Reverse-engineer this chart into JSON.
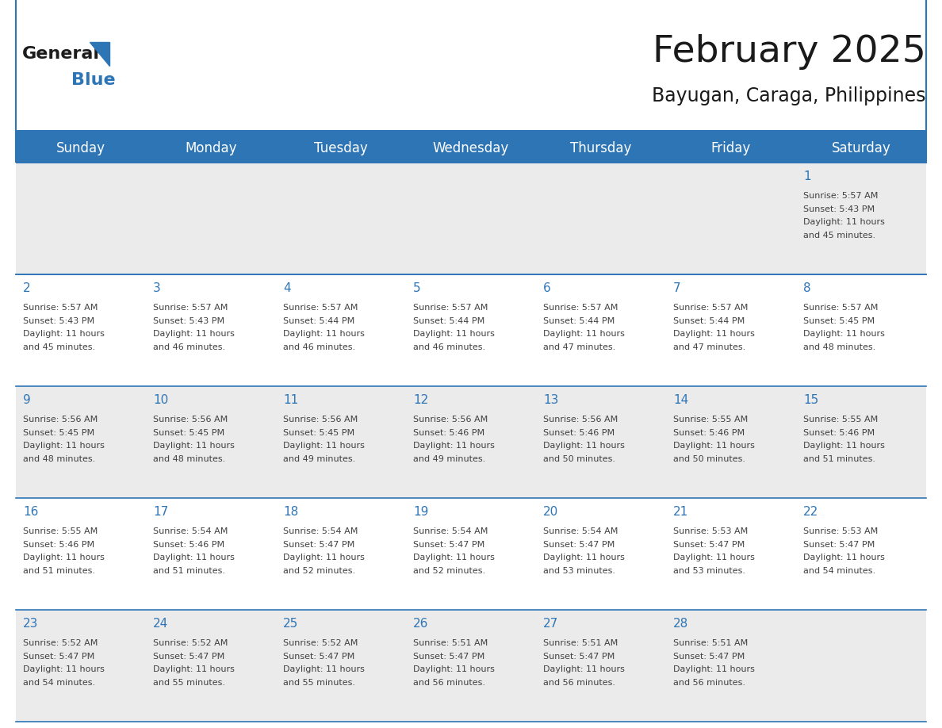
{
  "title": "February 2025",
  "subtitle": "Bayugan, Caraga, Philippines",
  "days_of_week": [
    "Sunday",
    "Monday",
    "Tuesday",
    "Wednesday",
    "Thursday",
    "Friday",
    "Saturday"
  ],
  "header_bg": "#2E75B6",
  "header_text_color": "#FFFFFF",
  "cell_bg_row0": "#EBEBEB",
  "cell_bg_row1": "#FFFFFF",
  "cell_bg_row2": "#EBEBEB",
  "cell_bg_row3": "#FFFFFF",
  "cell_bg_row4": "#EBEBEB",
  "separator_color": "#2E75B6",
  "day_number_color": "#2E75B6",
  "cell_text_color": "#404040",
  "title_color": "#1a1a1a",
  "subtitle_color": "#1a1a1a",
  "calendar_data": [
    [
      {
        "day": null,
        "sunrise": null,
        "sunset": null,
        "daylight": null
      },
      {
        "day": null,
        "sunrise": null,
        "sunset": null,
        "daylight": null
      },
      {
        "day": null,
        "sunrise": null,
        "sunset": null,
        "daylight": null
      },
      {
        "day": null,
        "sunrise": null,
        "sunset": null,
        "daylight": null
      },
      {
        "day": null,
        "sunrise": null,
        "sunset": null,
        "daylight": null
      },
      {
        "day": null,
        "sunrise": null,
        "sunset": null,
        "daylight": null
      },
      {
        "day": 1,
        "sunrise": "5:57 AM",
        "sunset": "5:43 PM",
        "daylight": "11 hours and 45 minutes."
      }
    ],
    [
      {
        "day": 2,
        "sunrise": "5:57 AM",
        "sunset": "5:43 PM",
        "daylight": "11 hours and 45 minutes."
      },
      {
        "day": 3,
        "sunrise": "5:57 AM",
        "sunset": "5:43 PM",
        "daylight": "11 hours and 46 minutes."
      },
      {
        "day": 4,
        "sunrise": "5:57 AM",
        "sunset": "5:44 PM",
        "daylight": "11 hours and 46 minutes."
      },
      {
        "day": 5,
        "sunrise": "5:57 AM",
        "sunset": "5:44 PM",
        "daylight": "11 hours and 46 minutes."
      },
      {
        "day": 6,
        "sunrise": "5:57 AM",
        "sunset": "5:44 PM",
        "daylight": "11 hours and 47 minutes."
      },
      {
        "day": 7,
        "sunrise": "5:57 AM",
        "sunset": "5:44 PM",
        "daylight": "11 hours and 47 minutes."
      },
      {
        "day": 8,
        "sunrise": "5:57 AM",
        "sunset": "5:45 PM",
        "daylight": "11 hours and 48 minutes."
      }
    ],
    [
      {
        "day": 9,
        "sunrise": "5:56 AM",
        "sunset": "5:45 PM",
        "daylight": "11 hours and 48 minutes."
      },
      {
        "day": 10,
        "sunrise": "5:56 AM",
        "sunset": "5:45 PM",
        "daylight": "11 hours and 48 minutes."
      },
      {
        "day": 11,
        "sunrise": "5:56 AM",
        "sunset": "5:45 PM",
        "daylight": "11 hours and 49 minutes."
      },
      {
        "day": 12,
        "sunrise": "5:56 AM",
        "sunset": "5:46 PM",
        "daylight": "11 hours and 49 minutes."
      },
      {
        "day": 13,
        "sunrise": "5:56 AM",
        "sunset": "5:46 PM",
        "daylight": "11 hours and 50 minutes."
      },
      {
        "day": 14,
        "sunrise": "5:55 AM",
        "sunset": "5:46 PM",
        "daylight": "11 hours and 50 minutes."
      },
      {
        "day": 15,
        "sunrise": "5:55 AM",
        "sunset": "5:46 PM",
        "daylight": "11 hours and 51 minutes."
      }
    ],
    [
      {
        "day": 16,
        "sunrise": "5:55 AM",
        "sunset": "5:46 PM",
        "daylight": "11 hours and 51 minutes."
      },
      {
        "day": 17,
        "sunrise": "5:54 AM",
        "sunset": "5:46 PM",
        "daylight": "11 hours and 51 minutes."
      },
      {
        "day": 18,
        "sunrise": "5:54 AM",
        "sunset": "5:47 PM",
        "daylight": "11 hours and 52 minutes."
      },
      {
        "day": 19,
        "sunrise": "5:54 AM",
        "sunset": "5:47 PM",
        "daylight": "11 hours and 52 minutes."
      },
      {
        "day": 20,
        "sunrise": "5:54 AM",
        "sunset": "5:47 PM",
        "daylight": "11 hours and 53 minutes."
      },
      {
        "day": 21,
        "sunrise": "5:53 AM",
        "sunset": "5:47 PM",
        "daylight": "11 hours and 53 minutes."
      },
      {
        "day": 22,
        "sunrise": "5:53 AM",
        "sunset": "5:47 PM",
        "daylight": "11 hours and 54 minutes."
      }
    ],
    [
      {
        "day": 23,
        "sunrise": "5:52 AM",
        "sunset": "5:47 PM",
        "daylight": "11 hours and 54 minutes."
      },
      {
        "day": 24,
        "sunrise": "5:52 AM",
        "sunset": "5:47 PM",
        "daylight": "11 hours and 55 minutes."
      },
      {
        "day": 25,
        "sunrise": "5:52 AM",
        "sunset": "5:47 PM",
        "daylight": "11 hours and 55 minutes."
      },
      {
        "day": 26,
        "sunrise": "5:51 AM",
        "sunset": "5:47 PM",
        "daylight": "11 hours and 56 minutes."
      },
      {
        "day": 27,
        "sunrise": "5:51 AM",
        "sunset": "5:47 PM",
        "daylight": "11 hours and 56 minutes."
      },
      {
        "day": 28,
        "sunrise": "5:51 AM",
        "sunset": "5:47 PM",
        "daylight": "11 hours and 56 minutes."
      },
      {
        "day": null,
        "sunrise": null,
        "sunset": null,
        "daylight": null
      }
    ]
  ],
  "logo_text1": "General",
  "logo_text2": "Blue",
  "logo_triangle_color": "#2E75B6",
  "row_bg_colors": [
    "#EBEBEB",
    "#FFFFFF",
    "#EBEBEB",
    "#FFFFFF",
    "#EBEBEB"
  ]
}
